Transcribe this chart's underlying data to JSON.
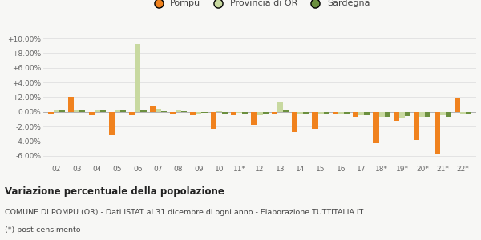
{
  "categories": [
    "02",
    "03",
    "04",
    "05",
    "06",
    "07",
    "08",
    "09",
    "10",
    "11*",
    "12",
    "13",
    "14",
    "15",
    "16",
    "17",
    "18*",
    "19*",
    "20*",
    "21*",
    "22*"
  ],
  "pompu": [
    -0.4,
    2.0,
    -0.5,
    -3.2,
    -0.5,
    0.7,
    -0.2,
    -0.5,
    -2.3,
    -0.5,
    -1.8,
    -0.3,
    -2.7,
    -2.3,
    -0.3,
    -0.7,
    -4.3,
    -1.2,
    -3.8,
    -5.8,
    1.8
  ],
  "provincia": [
    0.3,
    0.3,
    0.3,
    0.3,
    9.3,
    0.4,
    0.2,
    -0.2,
    0.1,
    -0.1,
    -0.5,
    1.4,
    -0.2,
    -0.4,
    -0.2,
    -0.5,
    -0.7,
    -0.8,
    -0.7,
    -0.5,
    -0.2
  ],
  "sardegna": [
    0.2,
    0.3,
    0.2,
    0.2,
    0.2,
    0.1,
    0.1,
    -0.1,
    -0.2,
    -0.3,
    -0.3,
    0.2,
    -0.4,
    -0.4,
    -0.4,
    -0.5,
    -0.7,
    -0.6,
    -0.7,
    -0.7,
    -0.4
  ],
  "color_pompu": "#f0821e",
  "color_provincia": "#c8d9a0",
  "color_sardegna": "#6b8f3e",
  "title_bold": "Variazione percentuale della popolazione",
  "subtitle": "COMUNE DI POMPU (OR) - Dati ISTAT al 31 dicembre di ogni anno - Elaborazione TUTTITALIA.IT",
  "footnote": "(*) post-censimento",
  "legend_labels": [
    "Pompu",
    "Provincia di OR",
    "Sardegna"
  ],
  "ylim": [
    -7.0,
    11.0
  ],
  "yticks": [
    -6.0,
    -4.0,
    -2.0,
    0.0,
    2.0,
    4.0,
    6.0,
    8.0,
    10.0
  ],
  "background_color": "#f7f7f5",
  "grid_color": "#e0e0e0"
}
